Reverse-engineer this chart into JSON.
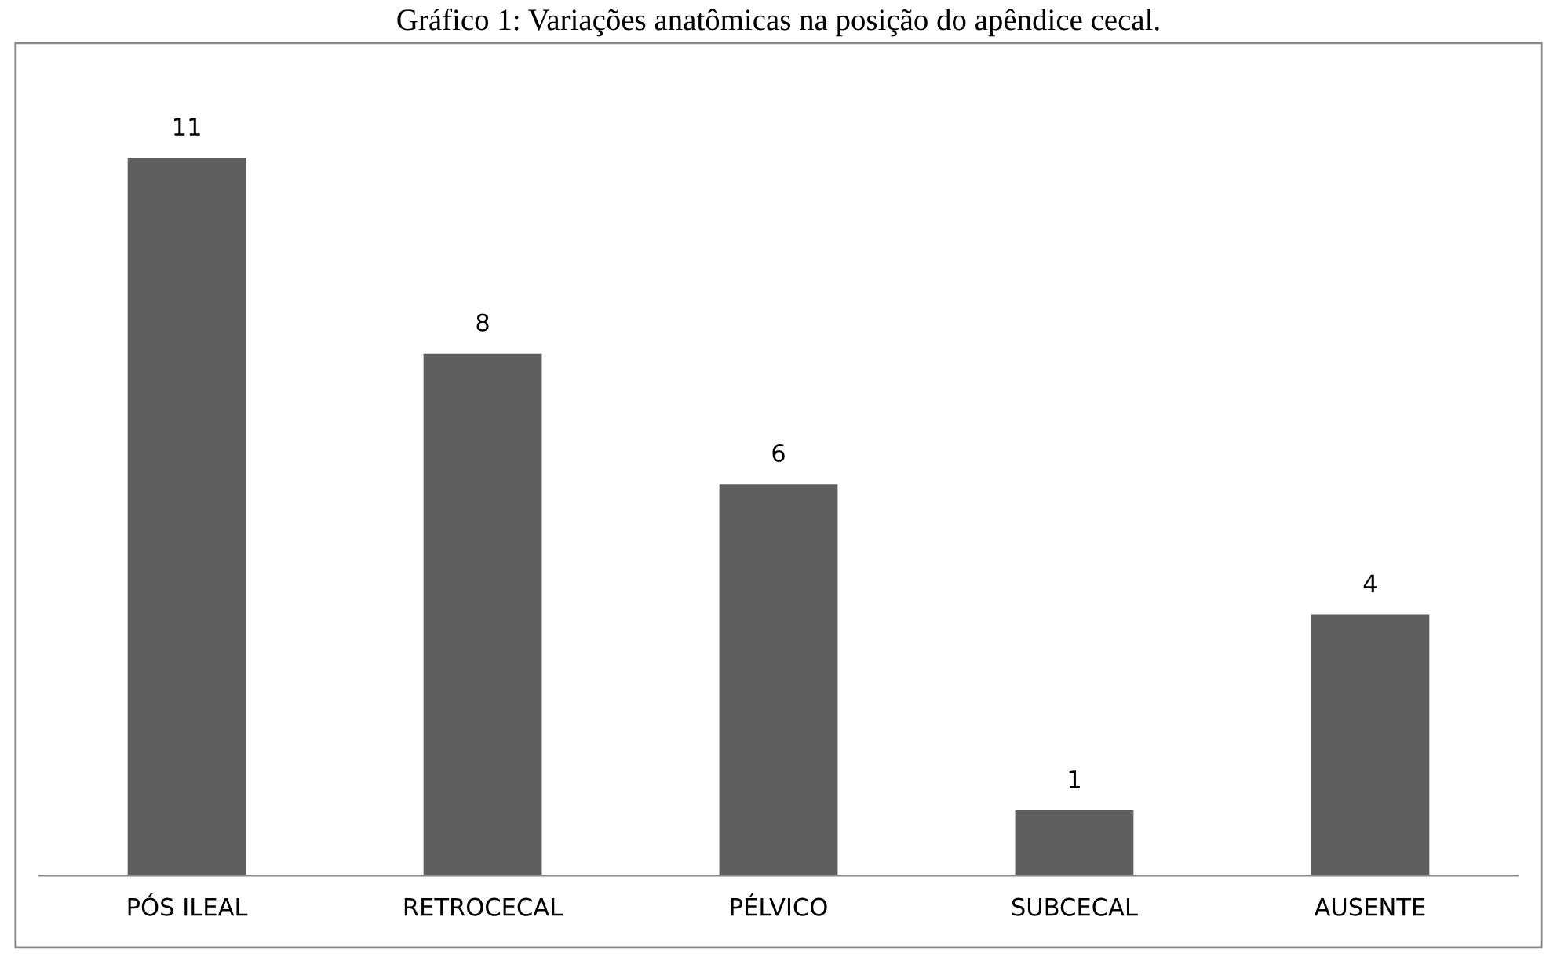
{
  "chart_data": {
    "type": "bar",
    "title": "Gráfico 1: Variações anatômicas na posição do apêndice cecal.",
    "categories": [
      "PÓS ILEAL",
      "RETROCECAL",
      "PÉLVICO",
      "SUBCECAL",
      "AUSENTE"
    ],
    "values": [
      11,
      8,
      6,
      1,
      4
    ],
    "color": "#5f5f5f",
    "data_labels": true
  }
}
